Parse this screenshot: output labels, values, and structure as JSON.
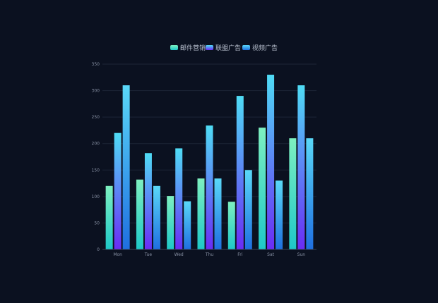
{
  "chart_data": {
    "type": "bar",
    "categories": [
      "Mon",
      "Tue",
      "Wed",
      "Thu",
      "Fri",
      "Sat",
      "Sun"
    ],
    "series": [
      {
        "name": "邮件营销",
        "values": [
          120,
          132,
          101,
          134,
          90,
          230,
          210
        ],
        "color_top": "#7ef0c0",
        "color_bottom": "#1ec8c8"
      },
      {
        "name": "联盟广告",
        "values": [
          220,
          182,
          191,
          234,
          290,
          330,
          310
        ],
        "color_top": "#4fdcf5",
        "color_bottom": "#6a2cf5"
      },
      {
        "name": "视频广告",
        "values": [
          310,
          120,
          91,
          134,
          150,
          130,
          210
        ],
        "color_top": "#5ad8f8",
        "color_bottom": "#1f6fe0"
      }
    ],
    "ylim": [
      0,
      350
    ],
    "yticks": [
      "0",
      "50",
      "100",
      "150",
      "200",
      "250",
      "300",
      "350"
    ],
    "grid": true,
    "legend_position": "top-center",
    "colors": {
      "background": "#0b1120",
      "grid": "#1c2536",
      "axis": "#3a4458",
      "tick_text": "#8a93a6",
      "legend_text": "#b8c0cf"
    }
  }
}
